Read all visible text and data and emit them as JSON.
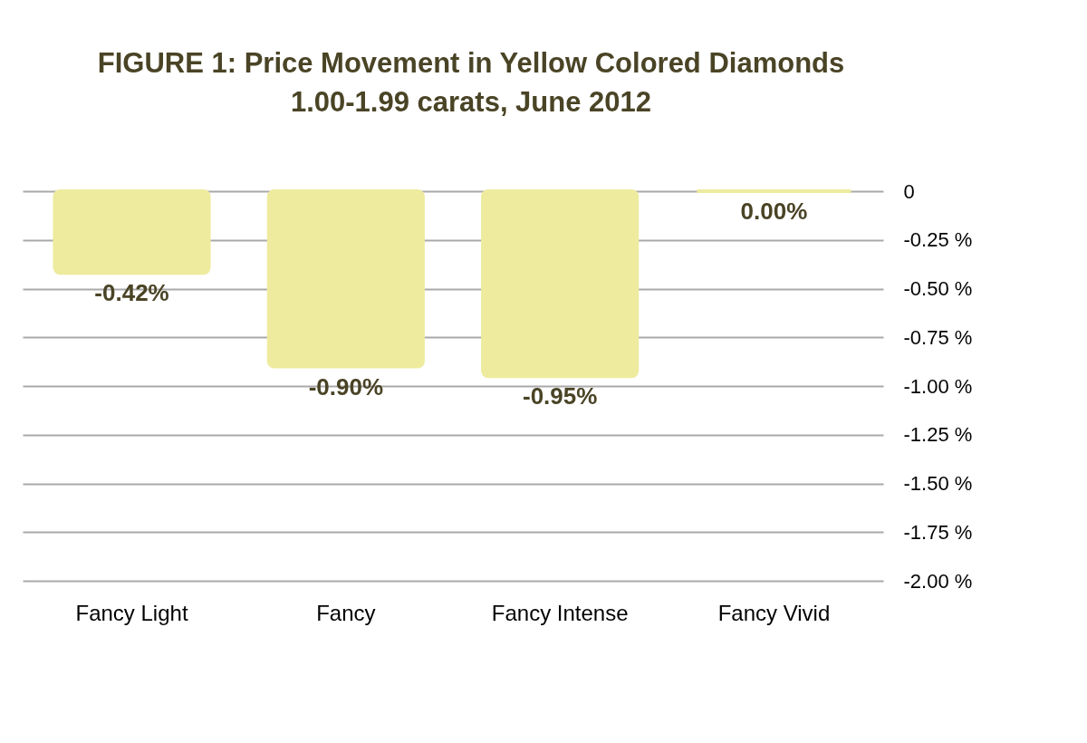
{
  "chart_data": {
    "type": "bar",
    "title": "FIGURE 1: Price Movement in Yellow Colored Diamonds",
    "subtitle": "1.00-1.99 carats, June 2012",
    "categories": [
      "Fancy Light",
      "Fancy",
      "Fancy Intense",
      "Fancy Vivid"
    ],
    "values": [
      -0.42,
      -0.9,
      -0.95,
      0.0
    ],
    "value_labels": [
      "-0.42%",
      "-0.90%",
      "-0.95%",
      "0.00%"
    ],
    "color": "#eeeb9e",
    "ylim": [
      -2.0,
      0
    ],
    "yticks": [
      0,
      {
        "value": -0.25,
        "label": "-0.25 %"
      },
      {
        "value": -0.5,
        "label": "-0.50 %"
      },
      {
        "value": -0.75,
        "label": "-0.75 %"
      },
      {
        "value": -1.0,
        "label": "-1.00 %"
      },
      {
        "value": -1.25,
        "label": "-1.25 %"
      },
      {
        "value": -1.5,
        "label": "-1.50 %"
      },
      {
        "value": -1.75,
        "label": "-1.75 %"
      },
      {
        "value": -2.0,
        "label": "-2.00 %"
      }
    ],
    "grid": "y"
  }
}
